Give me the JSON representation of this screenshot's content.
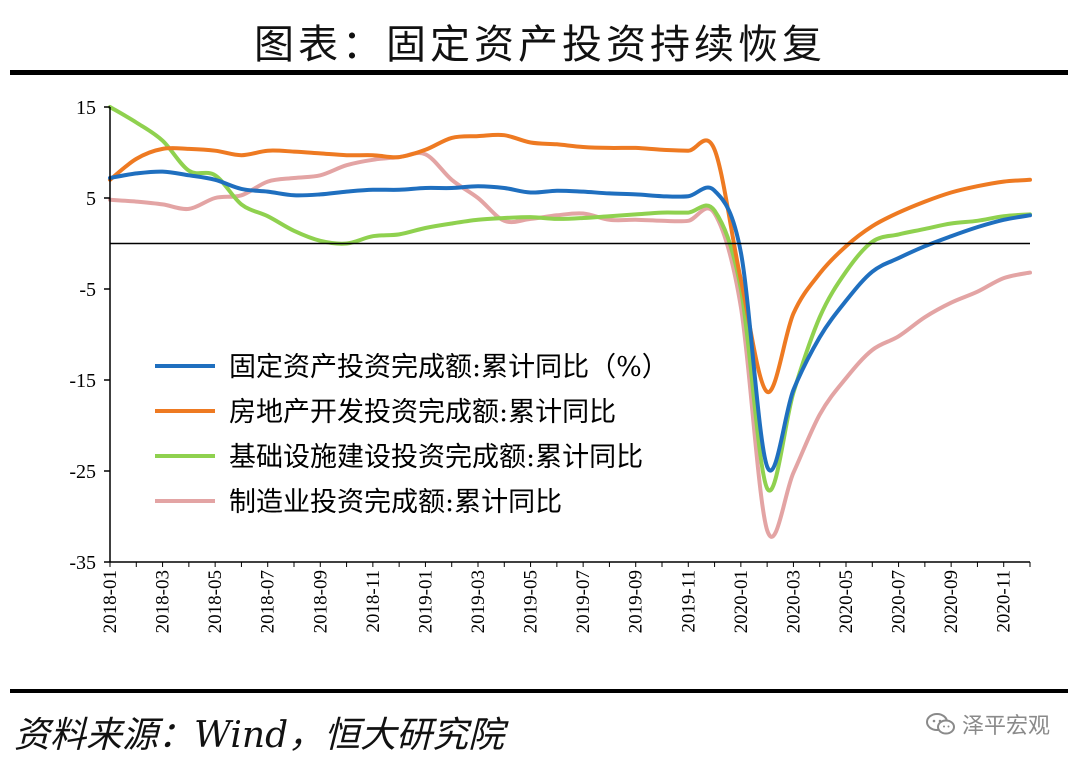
{
  "title": "图表：固定资产投资持续恢复",
  "source": "资料来源：Wind，恒大研究院",
  "watermark": "泽平宏观",
  "chart_data": {
    "type": "line",
    "ylim": [
      -35,
      15
    ],
    "yticks": [
      15,
      5,
      -5,
      -15,
      -25,
      -35
    ],
    "x": [
      "2018-01",
      "2018-02",
      "2018-03",
      "2018-04",
      "2018-05",
      "2018-06",
      "2018-07",
      "2018-08",
      "2018-09",
      "2018-10",
      "2018-11",
      "2018-12",
      "2019-01",
      "2019-02",
      "2019-03",
      "2019-04",
      "2019-05",
      "2019-06",
      "2019-07",
      "2019-08",
      "2019-09",
      "2019-10",
      "2019-11",
      "2019-12",
      "2020-01",
      "2020-02",
      "2020-03",
      "2020-04",
      "2020-05",
      "2020-06",
      "2020-07",
      "2020-08",
      "2020-09",
      "2020-10",
      "2020-11",
      "2020-12"
    ],
    "xtick_labels": [
      "2018-01",
      "2018-03",
      "2018-05",
      "2018-07",
      "2018-09",
      "2018-11",
      "2019-01",
      "2019-03",
      "2019-05",
      "2019-07",
      "2019-09",
      "2019-11",
      "2020-01",
      "2020-03",
      "2020-05",
      "2020-07",
      "2020-09",
      "2020-11"
    ],
    "legend_position": "center-left",
    "series": [
      {
        "name": "固定资产投资完成额:累计同比（%）",
        "color": "#1f6fbf",
        "values": [
          7.2,
          7.7,
          7.9,
          7.5,
          7.0,
          6.0,
          5.7,
          5.3,
          5.4,
          5.7,
          5.9,
          5.9,
          6.1,
          6.1,
          6.3,
          6.1,
          5.6,
          5.8,
          5.7,
          5.5,
          5.4,
          5.2,
          5.2,
          5.8,
          -1.0,
          -24.5,
          -16.1,
          -10.3,
          -6.3,
          -3.1,
          -1.6,
          -0.3,
          0.8,
          1.8,
          2.6,
          3.1
        ]
      },
      {
        "name": "房地产开发投资完成额:累计同比",
        "color": "#ee7a22",
        "values": [
          7.0,
          9.3,
          10.4,
          10.4,
          10.2,
          9.7,
          10.2,
          10.1,
          9.9,
          9.7,
          9.7,
          9.5,
          10.3,
          11.6,
          11.8,
          11.9,
          11.1,
          10.9,
          10.6,
          10.5,
          10.5,
          10.3,
          10.2,
          10.3,
          -4.0,
          -16.3,
          -7.7,
          -3.3,
          -0.3,
          1.9,
          3.4,
          4.6,
          5.6,
          6.3,
          6.8,
          7.0
        ]
      },
      {
        "name": "基础设施建设投资完成额:累计同比",
        "color": "#8fd14f",
        "values": [
          15.0,
          13.3,
          11.3,
          8.0,
          7.5,
          4.3,
          3.0,
          1.4,
          0.3,
          0.0,
          0.8,
          1.0,
          1.7,
          2.2,
          2.6,
          2.8,
          2.9,
          2.7,
          2.8,
          3.0,
          3.2,
          3.4,
          3.4,
          3.6,
          -5.0,
          -26.9,
          -16.4,
          -8.1,
          -3.1,
          0.2,
          1.0,
          1.6,
          2.2,
          2.5,
          3.0,
          3.2
        ]
      },
      {
        "name": "制造业投资完成额:累计同比",
        "color": "#e3a4a4",
        "values": [
          4.8,
          4.6,
          4.3,
          3.8,
          5.0,
          5.3,
          6.8,
          7.2,
          7.5,
          8.6,
          9.2,
          9.5,
          9.8,
          7.0,
          5.0,
          2.5,
          2.7,
          3.1,
          3.3,
          2.6,
          2.6,
          2.5,
          2.5,
          3.3,
          -7.0,
          -31.5,
          -25.2,
          -18.8,
          -14.8,
          -11.7,
          -10.2,
          -8.1,
          -6.5,
          -5.3,
          -3.8,
          -3.2
        ]
      }
    ]
  }
}
